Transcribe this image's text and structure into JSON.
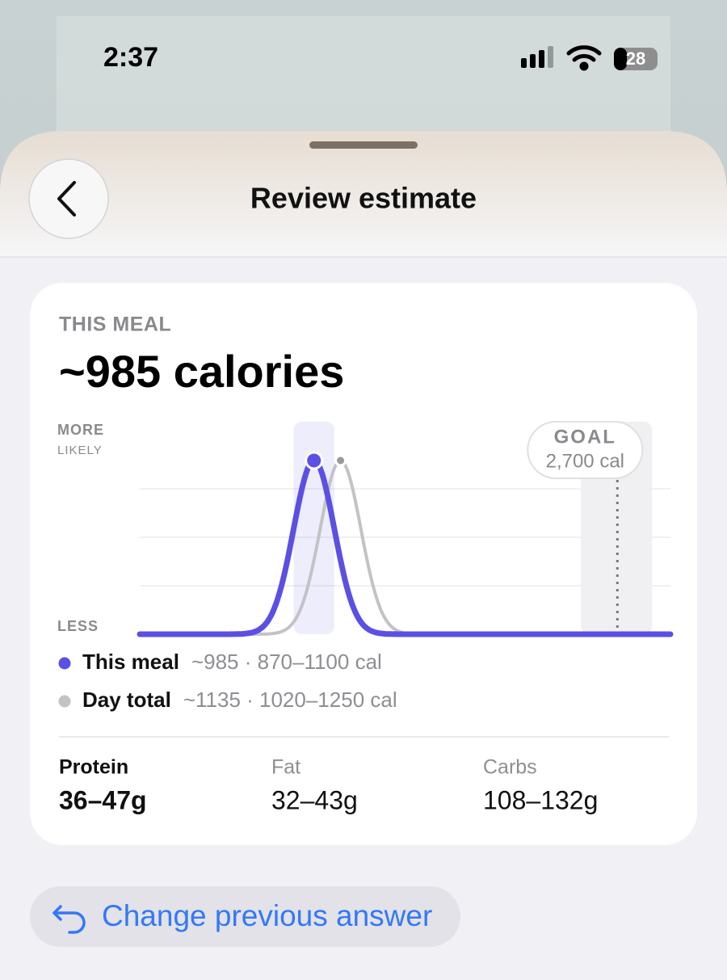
{
  "status_bar": {
    "time": "2:37",
    "battery": "28"
  },
  "header": {
    "title": "Review estimate"
  },
  "card": {
    "eyebrow": "THIS MEAL",
    "headline": "~985 calories"
  },
  "chart_data": {
    "type": "density",
    "y_label_top": "MORE",
    "y_label_top_sub": "LIKELY",
    "y_label_bottom": "LESS",
    "xlim": [
      0,
      3000
    ],
    "series": [
      {
        "name": "This meal",
        "color": "#5b50e3",
        "estimate": 985,
        "low": 870,
        "high": 1100,
        "label": "~985 · 870–1100 cal"
      },
      {
        "name": "Day total",
        "color": "#c3c3c7",
        "estimate": 1135,
        "low": 1020,
        "high": 1250,
        "label": "~1135 · 1020–1250 cal"
      }
    ],
    "goal": {
      "value": 2700,
      "title": "GOAL",
      "label": "2,700 cal"
    }
  },
  "macros": [
    {
      "name": "Protein",
      "range": "36–47g"
    },
    {
      "name": "Fat",
      "range": "32–43g"
    },
    {
      "name": "Carbs",
      "range": "108–132g"
    }
  ],
  "button": {
    "label": "Change previous answer"
  }
}
